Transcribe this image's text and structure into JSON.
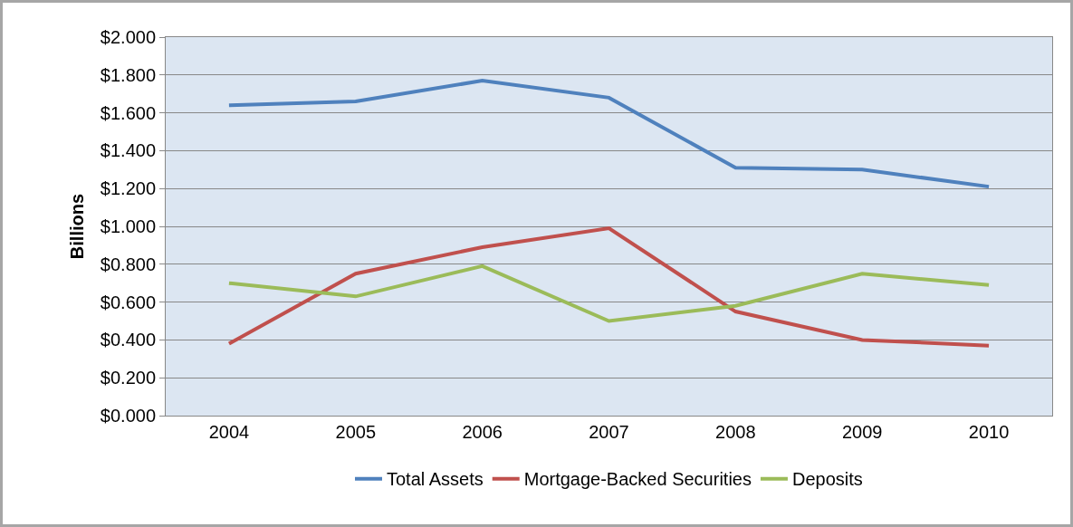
{
  "chart_data": {
    "type": "line",
    "ylabel": "Billions",
    "categories": [
      "2004",
      "2005",
      "2006",
      "2007",
      "2008",
      "2009",
      "2010"
    ],
    "series": [
      {
        "name": "Total Assets",
        "color": "#4f81bd",
        "values": [
          1.64,
          1.66,
          1.77,
          1.68,
          1.31,
          1.3,
          1.21
        ]
      },
      {
        "name": "Mortgage-Backed Securities",
        "color": "#c0504d",
        "values": [
          0.38,
          0.75,
          0.89,
          0.99,
          0.55,
          0.4,
          0.37
        ]
      },
      {
        "name": "Deposits",
        "color": "#9bbb59",
        "values": [
          0.7,
          0.63,
          0.79,
          0.5,
          0.58,
          0.75,
          0.69
        ]
      }
    ],
    "ylim": [
      0,
      2
    ],
    "yticks": [
      {
        "value": 0,
        "label": "$0.000"
      },
      {
        "value": 0.2,
        "label": "$0.200"
      },
      {
        "value": 0.4,
        "label": "$0.400"
      },
      {
        "value": 0.6,
        "label": "$0.600"
      },
      {
        "value": 0.8,
        "label": "$0.800"
      },
      {
        "value": 1,
        "label": "$1.000"
      },
      {
        "value": 1.2,
        "label": "$1.200"
      },
      {
        "value": 1.4,
        "label": "$1.400"
      },
      {
        "value": 1.6,
        "label": "$1.600"
      },
      {
        "value": 1.8,
        "label": "$1.800"
      },
      {
        "value": 2,
        "label": "$2.000"
      }
    ],
    "grid": "y",
    "legend": "bottom",
    "marker": "none",
    "line_style": "solid"
  }
}
